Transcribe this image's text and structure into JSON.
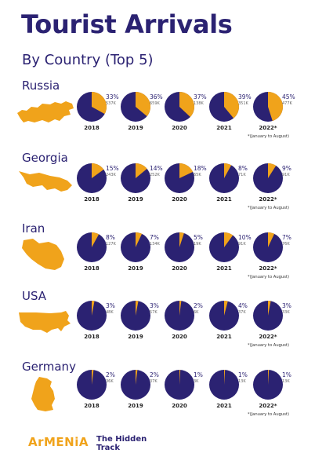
{
  "title": "Tourist Arrivals",
  "subtitle": "By Country (Top 5)",
  "note": "*(January to August)",
  "logo": {
    "brand": "ArMENiA",
    "tagline_line1": "The Hidden",
    "tagline_line2": "Track"
  },
  "colors": {
    "pie_main": "#2b2272",
    "pie_share": "#f0a31b",
    "map": "#f0a31b",
    "text": "#2b2272"
  },
  "chart_data": {
    "type": "pie",
    "title": "Tourist Arrivals",
    "subtitle": "By Country (Top 5)",
    "years": [
      "2018",
      "2019",
      "2020",
      "2021",
      "2022*"
    ],
    "countries": [
      {
        "name": "Russia",
        "shares": [
          33,
          36,
          37,
          39,
          45
        ],
        "counts": [
          "537K",
          "659K",
          "138K",
          "351K",
          "477K"
        ]
      },
      {
        "name": "Georgia",
        "shares": [
          15,
          14,
          18,
          8,
          9
        ],
        "counts": [
          "243K",
          "252K",
          "65K",
          "71K",
          "91K"
        ]
      },
      {
        "name": "Iran",
        "shares": [
          8,
          7,
          5,
          10,
          7
        ],
        "counts": [
          "127K",
          "134K",
          "19K",
          "91K",
          "76K"
        ]
      },
      {
        "name": "USA",
        "shares": [
          3,
          3,
          2,
          4,
          3
        ],
        "counts": [
          "48K",
          "57K",
          "6K",
          "37K",
          "33K"
        ]
      },
      {
        "name": "Germany",
        "shares": [
          2,
          2,
          1,
          1,
          1
        ],
        "counts": [
          "36K",
          "37K",
          "3K",
          "13K",
          "13K"
        ]
      }
    ]
  }
}
